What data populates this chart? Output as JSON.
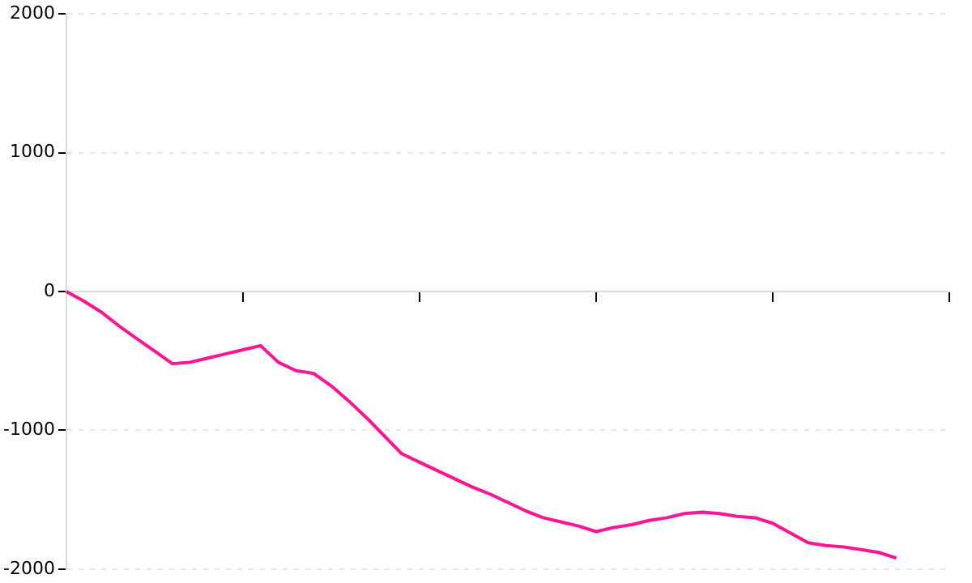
{
  "chart_data": {
    "type": "line",
    "categories": [
      null,
      null,
      null,
      null,
      null,
      null,
      null,
      null,
      null,
      null,
      null,
      null,
      null,
      null,
      null,
      null,
      null,
      null,
      null,
      null,
      null,
      null,
      null,
      null,
      null,
      null,
      null,
      null,
      null,
      null,
      null,
      null,
      null,
      null,
      null,
      null,
      null,
      null,
      null,
      null,
      null,
      null,
      null,
      null,
      null,
      null,
      null,
      null,
      null,
      null,
      null
    ],
    "series": [
      {
        "color": "#ff1493",
        "values": [
          0,
          -70,
          -150,
          -250,
          -340,
          -430,
          -520,
          -510,
          -480,
          -450,
          -420,
          -390,
          -510,
          -570,
          -590,
          -680,
          -790,
          -910,
          -1040,
          -1170,
          -1230,
          -1290,
          -1350,
          -1410,
          -1460,
          -1520,
          -1580,
          -1630,
          -1660,
          -1690,
          -1730,
          -1700,
          -1680,
          -1650,
          -1630,
          -1600,
          -1590,
          -1600,
          -1620,
          -1630,
          -1670,
          -1740,
          -1810,
          -1830,
          -1840,
          -1860,
          -1880,
          -1920,
          null,
          null,
          null
        ]
      }
    ],
    "ylim": [
      -2000,
      2000
    ],
    "yticks": [
      -2000,
      -1000,
      0,
      1000,
      2000
    ],
    "grid": "y",
    "legend": false,
    "marker": "none",
    "line_style": "solid"
  }
}
